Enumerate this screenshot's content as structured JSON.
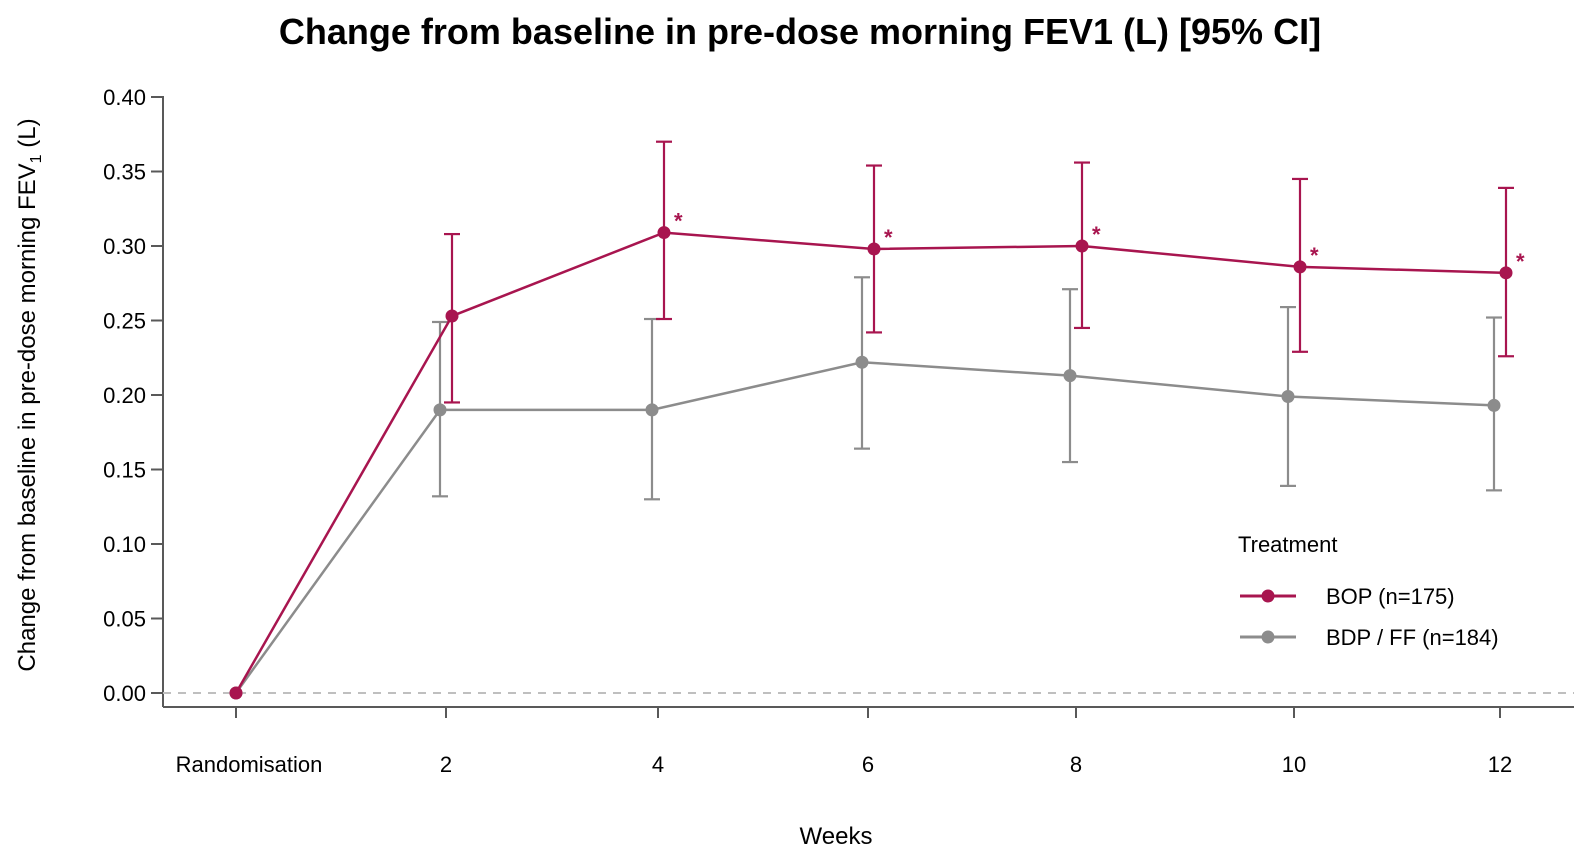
{
  "colors": {
    "bop": "#A8154F",
    "bdp_ff": "#8C8C8C",
    "axis": "#595959",
    "reference_line": "#BFBFBF"
  },
  "chart_data": {
    "type": "line",
    "title": "Change from baseline in pre-dose morning FEV1 (L) [95% CI]",
    "xlabel": "Weeks",
    "ylabel_main": "Change from baseline in pre-dose morning FEV",
    "ylabel_subscript": "1",
    "ylabel_unit": " (L)",
    "categories": [
      "Randomisation",
      "2",
      "4",
      "6",
      "8",
      "10",
      "12"
    ],
    "ylim": [
      0.0,
      0.4
    ],
    "y_ticks": [
      "0.00",
      "0.05",
      "0.10",
      "0.15",
      "0.20",
      "0.25",
      "0.30",
      "0.35",
      "0.40"
    ],
    "reference_line_y": 0.0,
    "grid": false,
    "legend": {
      "title": "Treatment",
      "placement": "bottom-right"
    },
    "significance_symbol": "*",
    "series": [
      {
        "name": "BOP (n=175)",
        "color": "#A8154F",
        "values": [
          0.0,
          0.253,
          0.309,
          0.298,
          0.3,
          0.286,
          0.282
        ],
        "ci_lower": [
          null,
          0.195,
          0.251,
          0.242,
          0.245,
          0.229,
          0.226
        ],
        "ci_upper": [
          null,
          0.308,
          0.37,
          0.354,
          0.356,
          0.345,
          0.339
        ],
        "significant": [
          false,
          false,
          true,
          true,
          true,
          true,
          true
        ]
      },
      {
        "name": "BDP / FF (n=184)",
        "color": "#8C8C8C",
        "values": [
          0.0,
          0.19,
          0.19,
          0.222,
          0.213,
          0.199,
          0.193
        ],
        "ci_lower": [
          null,
          0.132,
          0.13,
          0.164,
          0.155,
          0.139,
          0.136
        ],
        "ci_upper": [
          null,
          0.249,
          0.251,
          0.279,
          0.271,
          0.259,
          0.252
        ],
        "significant": [
          false,
          false,
          false,
          false,
          false,
          false,
          false
        ]
      }
    ]
  }
}
